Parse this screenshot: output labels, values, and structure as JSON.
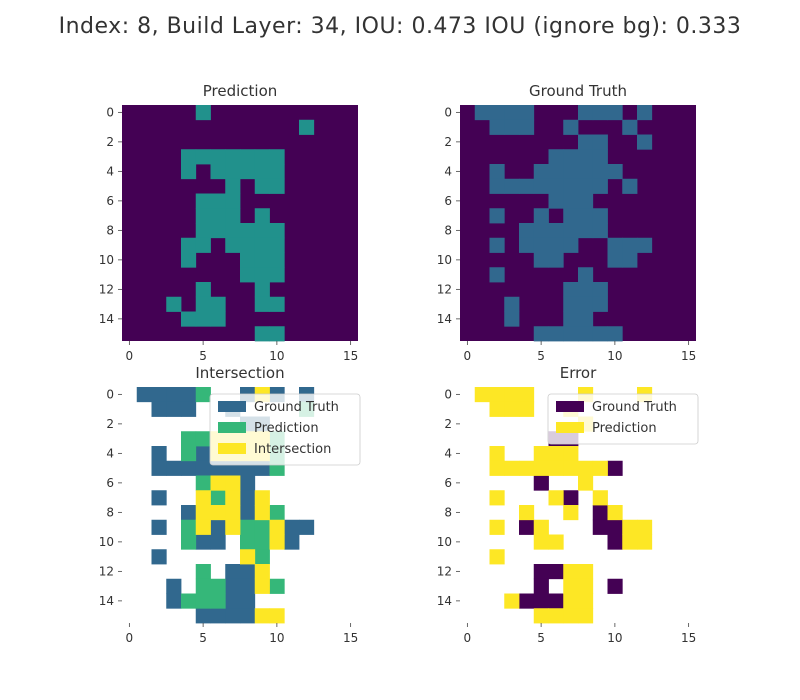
{
  "figure": {
    "title": "Index: 8, Build Layer: 34, IOU: 0.473 IOU (ignore bg): 0.333"
  },
  "chart_data": [
    {
      "type": "heatmap",
      "title": "Prediction",
      "xticks": [
        0,
        5,
        10,
        15
      ],
      "yticks": [
        0,
        2,
        4,
        6,
        8,
        10,
        12,
        14
      ],
      "xlim": [
        -0.5,
        15.5
      ],
      "ylim": [
        15.5,
        -0.5
      ],
      "colors": {
        "background": "#440154",
        "prediction": "#21918c"
      },
      "cells": [
        [
          5,
          0
        ],
        [
          12,
          1
        ],
        [
          4,
          3
        ],
        [
          5,
          3
        ],
        [
          6,
          3
        ],
        [
          7,
          3
        ],
        [
          8,
          3
        ],
        [
          9,
          3
        ],
        [
          10,
          3
        ],
        [
          4,
          4
        ],
        [
          6,
          4
        ],
        [
          7,
          4
        ],
        [
          8,
          4
        ],
        [
          9,
          4
        ],
        [
          10,
          4
        ],
        [
          7,
          5
        ],
        [
          9,
          5
        ],
        [
          10,
          5
        ],
        [
          5,
          6
        ],
        [
          6,
          6
        ],
        [
          7,
          6
        ],
        [
          5,
          7
        ],
        [
          6,
          7
        ],
        [
          7,
          7
        ],
        [
          9,
          7
        ],
        [
          5,
          8
        ],
        [
          6,
          8
        ],
        [
          7,
          8
        ],
        [
          8,
          8
        ],
        [
          9,
          8
        ],
        [
          10,
          8
        ],
        [
          4,
          9
        ],
        [
          5,
          9
        ],
        [
          7,
          9
        ],
        [
          8,
          9
        ],
        [
          9,
          9
        ],
        [
          10,
          9
        ],
        [
          4,
          10
        ],
        [
          8,
          10
        ],
        [
          9,
          10
        ],
        [
          10,
          10
        ],
        [
          8,
          11
        ],
        [
          9,
          11
        ],
        [
          10,
          11
        ],
        [
          5,
          12
        ],
        [
          9,
          12
        ],
        [
          3,
          13
        ],
        [
          5,
          13
        ],
        [
          6,
          13
        ],
        [
          9,
          13
        ],
        [
          10,
          13
        ],
        [
          4,
          14
        ],
        [
          5,
          14
        ],
        [
          6,
          14
        ],
        [
          9,
          15
        ],
        [
          10,
          15
        ]
      ]
    },
    {
      "type": "heatmap",
      "title": "Ground Truth",
      "xticks": [
        0,
        5,
        10,
        15
      ],
      "yticks": [
        0,
        2,
        4,
        6,
        8,
        10,
        12,
        14
      ],
      "xlim": [
        -0.5,
        15.5
      ],
      "ylim": [
        15.5,
        -0.5
      ],
      "colors": {
        "background": "#440154",
        "ground_truth": "#31688e"
      },
      "cells": [
        [
          1,
          0
        ],
        [
          2,
          0
        ],
        [
          3,
          0
        ],
        [
          4,
          0
        ],
        [
          8,
          0
        ],
        [
          9,
          0
        ],
        [
          10,
          0
        ],
        [
          12,
          0
        ],
        [
          2,
          1
        ],
        [
          3,
          1
        ],
        [
          4,
          1
        ],
        [
          7,
          1
        ],
        [
          11,
          1
        ],
        [
          8,
          2
        ],
        [
          9,
          2
        ],
        [
          12,
          2
        ],
        [
          6,
          3
        ],
        [
          7,
          3
        ],
        [
          8,
          3
        ],
        [
          9,
          3
        ],
        [
          2,
          4
        ],
        [
          5,
          4
        ],
        [
          6,
          4
        ],
        [
          7,
          4
        ],
        [
          8,
          4
        ],
        [
          9,
          4
        ],
        [
          10,
          4
        ],
        [
          2,
          5
        ],
        [
          3,
          5
        ],
        [
          4,
          5
        ],
        [
          5,
          5
        ],
        [
          6,
          5
        ],
        [
          7,
          5
        ],
        [
          8,
          5
        ],
        [
          9,
          5
        ],
        [
          11,
          5
        ],
        [
          6,
          6
        ],
        [
          7,
          6
        ],
        [
          8,
          6
        ],
        [
          2,
          7
        ],
        [
          5,
          7
        ],
        [
          7,
          7
        ],
        [
          8,
          7
        ],
        [
          9,
          7
        ],
        [
          4,
          8
        ],
        [
          5,
          8
        ],
        [
          6,
          8
        ],
        [
          7,
          8
        ],
        [
          8,
          8
        ],
        [
          9,
          8
        ],
        [
          2,
          9
        ],
        [
          4,
          9
        ],
        [
          5,
          9
        ],
        [
          6,
          9
        ],
        [
          7,
          9
        ],
        [
          10,
          9
        ],
        [
          11,
          9
        ],
        [
          12,
          9
        ],
        [
          5,
          10
        ],
        [
          6,
          10
        ],
        [
          10,
          10
        ],
        [
          11,
          10
        ],
        [
          2,
          11
        ],
        [
          8,
          11
        ],
        [
          7,
          12
        ],
        [
          8,
          12
        ],
        [
          9,
          12
        ],
        [
          3,
          13
        ],
        [
          7,
          13
        ],
        [
          8,
          13
        ],
        [
          9,
          13
        ],
        [
          3,
          14
        ],
        [
          7,
          14
        ],
        [
          8,
          14
        ],
        [
          5,
          15
        ],
        [
          6,
          15
        ],
        [
          7,
          15
        ],
        [
          8,
          15
        ],
        [
          9,
          15
        ],
        [
          10,
          15
        ]
      ]
    },
    {
      "type": "heatmap",
      "title": "Intersection",
      "xticks": [
        0,
        5,
        10,
        15
      ],
      "yticks": [
        0,
        2,
        4,
        6,
        8,
        10,
        12,
        14
      ],
      "xlim": [
        -0.5,
        15.5
      ],
      "ylim": [
        15.5,
        -0.5
      ],
      "legend": {
        "position": "upper right",
        "entries": [
          {
            "label": "Ground Truth",
            "color": "#31688e"
          },
          {
            "label": "Prediction",
            "color": "#35b779"
          },
          {
            "label": "Intersection",
            "color": "#fde725"
          }
        ]
      },
      "cells": {
        "ground_truth": [
          [
            1,
            0
          ],
          [
            2,
            0
          ],
          [
            3,
            0
          ],
          [
            4,
            0
          ],
          [
            8,
            0
          ],
          [
            10,
            0
          ],
          [
            12,
            0
          ],
          [
            2,
            1
          ],
          [
            3,
            1
          ],
          [
            4,
            1
          ],
          [
            7,
            1
          ],
          [
            8,
            2
          ],
          [
            9,
            2
          ],
          [
            2,
            4
          ],
          [
            5,
            4
          ],
          [
            2,
            5
          ],
          [
            3,
            5
          ],
          [
            4,
            5
          ],
          [
            5,
            5
          ],
          [
            6,
            5
          ],
          [
            7,
            5
          ],
          [
            8,
            5
          ],
          [
            9,
            5
          ],
          [
            8,
            6
          ],
          [
            2,
            7
          ],
          [
            8,
            7
          ],
          [
            4,
            8
          ],
          [
            8,
            8
          ],
          [
            2,
            9
          ],
          [
            6,
            9
          ],
          [
            11,
            9
          ],
          [
            12,
            9
          ],
          [
            5,
            10
          ],
          [
            6,
            10
          ],
          [
            11,
            10
          ],
          [
            2,
            11
          ],
          [
            7,
            12
          ],
          [
            8,
            12
          ],
          [
            3,
            13
          ],
          [
            7,
            13
          ],
          [
            8,
            13
          ],
          [
            3,
            14
          ],
          [
            7,
            14
          ],
          [
            8,
            14
          ],
          [
            5,
            15
          ],
          [
            6,
            15
          ],
          [
            7,
            15
          ],
          [
            8,
            15
          ]
        ],
        "prediction": [
          [
            5,
            0
          ],
          [
            12,
            1
          ],
          [
            4,
            3
          ],
          [
            5,
            3
          ],
          [
            10,
            3
          ],
          [
            4,
            4
          ],
          [
            10,
            4
          ],
          [
            10,
            5
          ],
          [
            5,
            6
          ],
          [
            6,
            7
          ],
          [
            10,
            8
          ],
          [
            4,
            9
          ],
          [
            8,
            9
          ],
          [
            9,
            9
          ],
          [
            4,
            10
          ],
          [
            8,
            10
          ],
          [
            9,
            10
          ],
          [
            9,
            11
          ],
          [
            5,
            12
          ],
          [
            5,
            13
          ],
          [
            6,
            13
          ],
          [
            10,
            13
          ],
          [
            4,
            14
          ],
          [
            5,
            14
          ],
          [
            6,
            14
          ]
        ],
        "intersection": [
          [
            9,
            0
          ],
          [
            6,
            3
          ],
          [
            7,
            3
          ],
          [
            8,
            3
          ],
          [
            9,
            3
          ],
          [
            6,
            4
          ],
          [
            7,
            4
          ],
          [
            8,
            4
          ],
          [
            9,
            4
          ],
          [
            6,
            6
          ],
          [
            7,
            6
          ],
          [
            5,
            7
          ],
          [
            7,
            7
          ],
          [
            9,
            7
          ],
          [
            5,
            8
          ],
          [
            6,
            8
          ],
          [
            7,
            8
          ],
          [
            9,
            8
          ],
          [
            5,
            9
          ],
          [
            7,
            9
          ],
          [
            10,
            9
          ],
          [
            10,
            10
          ],
          [
            8,
            11
          ],
          [
            9,
            12
          ],
          [
            9,
            13
          ],
          [
            9,
            15
          ],
          [
            10,
            15
          ]
        ]
      }
    },
    {
      "type": "heatmap",
      "title": "Error",
      "xticks": [
        0,
        5,
        10,
        15
      ],
      "yticks": [
        0,
        2,
        4,
        6,
        8,
        10,
        12,
        14
      ],
      "xlim": [
        -0.5,
        15.5
      ],
      "ylim": [
        15.5,
        -0.5
      ],
      "legend": {
        "position": "upper right",
        "entries": [
          {
            "label": "Ground Truth",
            "color": "#440154"
          },
          {
            "label": "Prediction",
            "color": "#fde725"
          }
        ]
      },
      "cells": {
        "ground_truth": [
          [
            6,
            3
          ],
          [
            7,
            3
          ],
          [
            10,
            5
          ],
          [
            5,
            6
          ],
          [
            7,
            7
          ],
          [
            9,
            8
          ],
          [
            4,
            9
          ],
          [
            9,
            9
          ],
          [
            10,
            9
          ],
          [
            10,
            10
          ],
          [
            5,
            12
          ],
          [
            6,
            12
          ],
          [
            5,
            13
          ],
          [
            10,
            13
          ],
          [
            4,
            14
          ],
          [
            5,
            14
          ],
          [
            6,
            14
          ]
        ],
        "prediction": [
          [
            1,
            0
          ],
          [
            2,
            0
          ],
          [
            3,
            0
          ],
          [
            4,
            0
          ],
          [
            8,
            0
          ],
          [
            12,
            0
          ],
          [
            2,
            1
          ],
          [
            3,
            1
          ],
          [
            4,
            1
          ],
          [
            7,
            1
          ],
          [
            8,
            2
          ],
          [
            2,
            4
          ],
          [
            5,
            4
          ],
          [
            6,
            4
          ],
          [
            7,
            4
          ],
          [
            2,
            5
          ],
          [
            3,
            5
          ],
          [
            4,
            5
          ],
          [
            5,
            5
          ],
          [
            6,
            5
          ],
          [
            7,
            5
          ],
          [
            8,
            5
          ],
          [
            9,
            5
          ],
          [
            8,
            6
          ],
          [
            2,
            7
          ],
          [
            6,
            7
          ],
          [
            9,
            7
          ],
          [
            4,
            8
          ],
          [
            7,
            8
          ],
          [
            10,
            8
          ],
          [
            2,
            9
          ],
          [
            5,
            9
          ],
          [
            11,
            9
          ],
          [
            12,
            9
          ],
          [
            5,
            10
          ],
          [
            6,
            10
          ],
          [
            11,
            10
          ],
          [
            12,
            10
          ],
          [
            2,
            11
          ],
          [
            7,
            12
          ],
          [
            8,
            12
          ],
          [
            7,
            13
          ],
          [
            8,
            13
          ],
          [
            3,
            14
          ],
          [
            7,
            14
          ],
          [
            8,
            14
          ],
          [
            5,
            15
          ],
          [
            6,
            15
          ],
          [
            7,
            15
          ],
          [
            8,
            15
          ]
        ]
      }
    }
  ]
}
